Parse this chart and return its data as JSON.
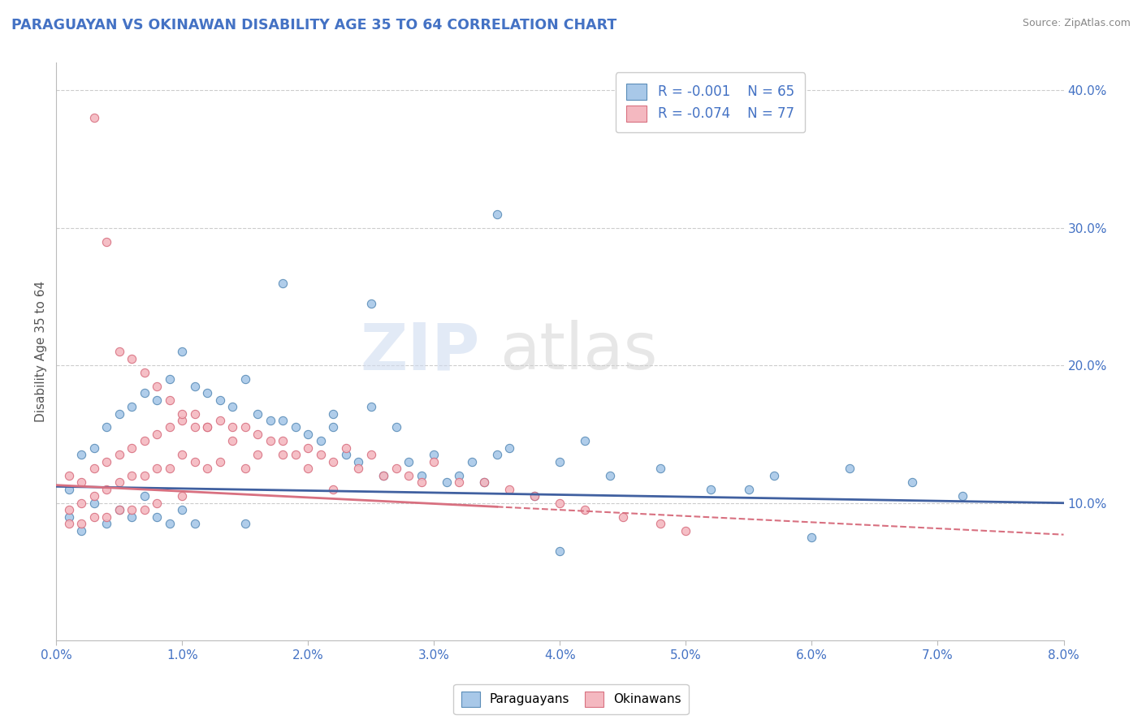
{
  "title": "PARAGUAYAN VS OKINAWAN DISABILITY AGE 35 TO 64 CORRELATION CHART",
  "source": "Source: ZipAtlas.com",
  "ylabel": "Disability Age 35 to 64",
  "legend_r1": "R = -0.001",
  "legend_n1": "N = 65",
  "legend_r2": "R = -0.074",
  "legend_n2": "N = 77",
  "blue_color": "#A8C8E8",
  "pink_color": "#F4B8C0",
  "blue_edge_color": "#5B8DB8",
  "pink_edge_color": "#D87080",
  "blue_line_color": "#4060A0",
  "pink_line_color": "#D87080",
  "title_color": "#4472C4",
  "xmin": 0.0,
  "xmax": 0.08,
  "ymin": 0.0,
  "ymax": 0.42,
  "blue_scatter_x": [
    0.001,
    0.001,
    0.002,
    0.002,
    0.003,
    0.003,
    0.004,
    0.004,
    0.005,
    0.005,
    0.006,
    0.006,
    0.007,
    0.007,
    0.008,
    0.008,
    0.009,
    0.009,
    0.01,
    0.01,
    0.011,
    0.011,
    0.012,
    0.013,
    0.014,
    0.015,
    0.015,
    0.016,
    0.017,
    0.018,
    0.019,
    0.02,
    0.021,
    0.022,
    0.023,
    0.024,
    0.025,
    0.026,
    0.027,
    0.028,
    0.029,
    0.03,
    0.031,
    0.032,
    0.033,
    0.034,
    0.035,
    0.036,
    0.038,
    0.04,
    0.042,
    0.044,
    0.048,
    0.052,
    0.057,
    0.063,
    0.068,
    0.072,
    0.035,
    0.025,
    0.022,
    0.018,
    0.04,
    0.055,
    0.06
  ],
  "blue_scatter_y": [
    0.11,
    0.09,
    0.135,
    0.08,
    0.14,
    0.1,
    0.155,
    0.085,
    0.165,
    0.095,
    0.17,
    0.09,
    0.18,
    0.105,
    0.175,
    0.09,
    0.19,
    0.085,
    0.21,
    0.095,
    0.185,
    0.085,
    0.18,
    0.175,
    0.17,
    0.19,
    0.085,
    0.165,
    0.16,
    0.16,
    0.155,
    0.15,
    0.145,
    0.155,
    0.135,
    0.13,
    0.17,
    0.12,
    0.155,
    0.13,
    0.12,
    0.135,
    0.115,
    0.12,
    0.13,
    0.115,
    0.135,
    0.14,
    0.105,
    0.13,
    0.145,
    0.12,
    0.125,
    0.11,
    0.12,
    0.125,
    0.115,
    0.105,
    0.31,
    0.245,
    0.165,
    0.26,
    0.065,
    0.11,
    0.075
  ],
  "pink_scatter_x": [
    0.001,
    0.001,
    0.001,
    0.002,
    0.002,
    0.002,
    0.003,
    0.003,
    0.003,
    0.004,
    0.004,
    0.004,
    0.005,
    0.005,
    0.005,
    0.006,
    0.006,
    0.006,
    0.007,
    0.007,
    0.007,
    0.008,
    0.008,
    0.008,
    0.009,
    0.009,
    0.01,
    0.01,
    0.01,
    0.011,
    0.011,
    0.012,
    0.012,
    0.013,
    0.013,
    0.014,
    0.015,
    0.015,
    0.016,
    0.017,
    0.018,
    0.019,
    0.02,
    0.021,
    0.022,
    0.023,
    0.024,
    0.025,
    0.026,
    0.027,
    0.028,
    0.029,
    0.03,
    0.032,
    0.034,
    0.036,
    0.038,
    0.04,
    0.042,
    0.045,
    0.048,
    0.05,
    0.003,
    0.004,
    0.005,
    0.006,
    0.007,
    0.008,
    0.009,
    0.01,
    0.011,
    0.012,
    0.014,
    0.016,
    0.018,
    0.02,
    0.022
  ],
  "pink_scatter_y": [
    0.12,
    0.095,
    0.085,
    0.115,
    0.1,
    0.085,
    0.125,
    0.105,
    0.09,
    0.13,
    0.11,
    0.09,
    0.135,
    0.115,
    0.095,
    0.14,
    0.12,
    0.095,
    0.145,
    0.12,
    0.095,
    0.15,
    0.125,
    0.1,
    0.155,
    0.125,
    0.16,
    0.135,
    0.105,
    0.155,
    0.13,
    0.155,
    0.125,
    0.16,
    0.13,
    0.155,
    0.155,
    0.125,
    0.15,
    0.145,
    0.145,
    0.135,
    0.14,
    0.135,
    0.13,
    0.14,
    0.125,
    0.135,
    0.12,
    0.125,
    0.12,
    0.115,
    0.13,
    0.115,
    0.115,
    0.11,
    0.105,
    0.1,
    0.095,
    0.09,
    0.085,
    0.08,
    0.38,
    0.29,
    0.21,
    0.205,
    0.195,
    0.185,
    0.175,
    0.165,
    0.165,
    0.155,
    0.145,
    0.135,
    0.135,
    0.125,
    0.11
  ]
}
